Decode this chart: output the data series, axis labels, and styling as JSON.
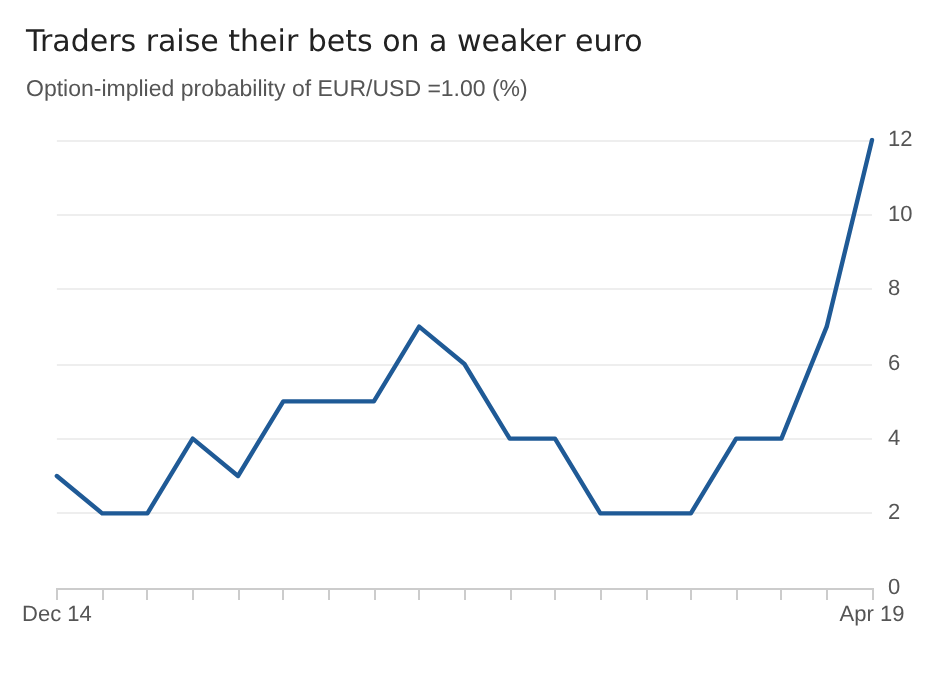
{
  "chart_data": {
    "type": "line",
    "title": "Traders raise their bets on a weaker euro",
    "subtitle": "Option-implied probability of EUR/USD =1.00 (%)",
    "categories": [
      "Dec 14",
      null,
      null,
      null,
      null,
      null,
      null,
      null,
      null,
      null,
      null,
      null,
      null,
      null,
      null,
      null,
      null,
      null,
      "Apr 19"
    ],
    "series": [
      {
        "color": "#1f5a96",
        "values": [
          3,
          2,
          2,
          4,
          3,
          5,
          5,
          5,
          7,
          6,
          4,
          4,
          2,
          2,
          2,
          4,
          4,
          7,
          12
        ]
      }
    ],
    "ylim": [
      0,
      12
    ],
    "yticks": [
      0,
      2,
      4,
      6,
      8,
      10,
      12
    ],
    "grid": "y",
    "marker": "none",
    "line_style": "solid"
  }
}
